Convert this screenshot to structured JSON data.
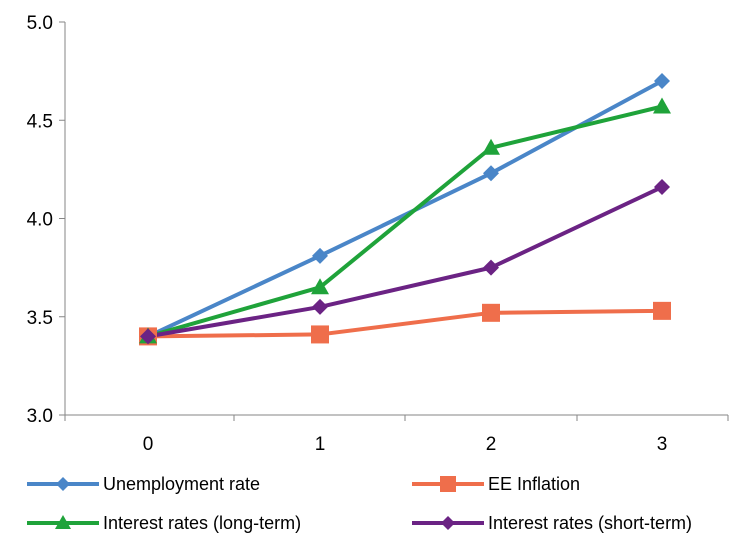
{
  "chart_data": {
    "type": "line",
    "title": "",
    "xlabel": "",
    "ylabel": "",
    "categories": [
      "0",
      "1",
      "2",
      "3"
    ],
    "x": [
      0,
      1,
      2,
      3
    ],
    "ylim": [
      3.0,
      5.0
    ],
    "yticks": [
      "3.0",
      "3.5",
      "4.0",
      "4.5",
      "5.0"
    ],
    "grid": false,
    "legend_position": "bottom",
    "series": [
      {
        "name": "Unemployment rate",
        "values": [
          3.4,
          3.81,
          4.23,
          4.7
        ],
        "color": "#4a86c8",
        "marker": "diamond"
      },
      {
        "name": "EE Inflation",
        "values": [
          3.4,
          3.41,
          3.52,
          3.53
        ],
        "color": "#ef6e4b",
        "marker": "square"
      },
      {
        "name": "Interest rates (long-term)",
        "values": [
          3.4,
          3.65,
          4.36,
          4.57
        ],
        "color": "#1fa33a",
        "marker": "triangle"
      },
      {
        "name": "Interest rates (short-term)",
        "values": [
          3.4,
          3.55,
          3.75,
          4.16
        ],
        "color": "#6b2384",
        "marker": "diamond"
      }
    ]
  }
}
